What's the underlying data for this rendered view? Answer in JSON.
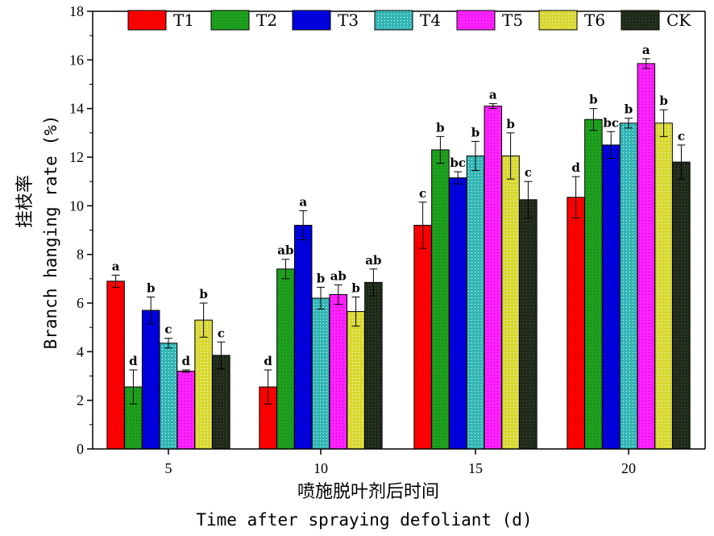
{
  "chart_data": {
    "type": "bar",
    "categories": [
      "5",
      "10",
      "15",
      "20"
    ],
    "ylim": [
      0,
      18
    ],
    "yticks": [
      0,
      2,
      4,
      6,
      8,
      10,
      12,
      14,
      16,
      18
    ],
    "ylabel_cn": "挂枝率",
    "ylabel_en": "Branch hanging rate (%)",
    "xlabel_cn": "喷施脱叶剂后时间",
    "xlabel_en": "Time after spraying defoliant (d)",
    "legend_position": "top",
    "series": [
      {
        "name": "T1",
        "color": "#ff0000",
        "values": [
          6.9,
          2.55,
          9.2,
          10.35
        ],
        "errors": [
          0.25,
          0.7,
          0.95,
          0.85
        ],
        "labels": [
          "a",
          "d",
          "c",
          "d"
        ]
      },
      {
        "name": "T2",
        "color": "#1ea01e",
        "values": [
          2.55,
          7.4,
          12.3,
          13.55
        ],
        "errors": [
          0.7,
          0.4,
          0.55,
          0.45
        ],
        "labels": [
          "d",
          "ab",
          "b",
          "b"
        ]
      },
      {
        "name": "T3",
        "color": "#0000e0",
        "values": [
          5.7,
          9.2,
          11.15,
          12.5
        ],
        "errors": [
          0.55,
          0.6,
          0.25,
          0.55
        ],
        "labels": [
          "b",
          "a",
          "bc",
          "bc"
        ]
      },
      {
        "name": "T4",
        "color": "#33b5b5",
        "values": [
          4.35,
          6.2,
          12.05,
          13.4
        ],
        "errors": [
          0.2,
          0.45,
          0.6,
          0.2
        ],
        "labels": [
          "c",
          "b",
          "b",
          "b"
        ]
      },
      {
        "name": "T5",
        "color": "#ff22ff",
        "values": [
          3.2,
          6.35,
          14.1,
          15.85
        ],
        "errors": [
          0.05,
          0.4,
          0.1,
          0.2
        ],
        "labels": [
          "d",
          "ab",
          "a",
          "a"
        ]
      },
      {
        "name": "T6",
        "color": "#d8d832",
        "values": [
          5.3,
          5.65,
          12.05,
          13.4
        ],
        "errors": [
          0.7,
          0.6,
          0.95,
          0.55
        ],
        "labels": [
          "b",
          "b",
          "b",
          "b"
        ]
      },
      {
        "name": "CK",
        "color": "#1f2a1a",
        "values": [
          3.85,
          6.85,
          10.25,
          11.8
        ],
        "errors": [
          0.55,
          0.55,
          0.75,
          0.7
        ],
        "labels": [
          "c",
          "ab",
          "c",
          "c"
        ]
      }
    ]
  }
}
